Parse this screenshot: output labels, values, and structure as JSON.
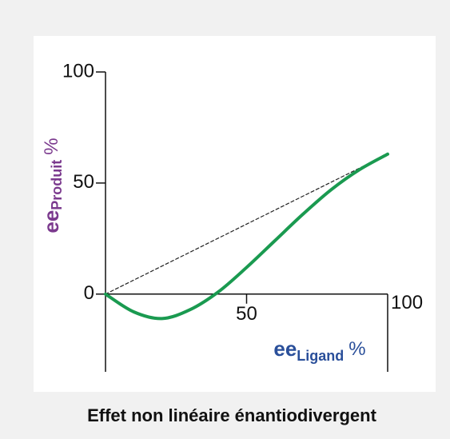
{
  "chart_data": {
    "type": "line",
    "y_label": {
      "main": "ee",
      "sub": "Produit",
      "unit": "%"
    },
    "x_label": {
      "main": "ee",
      "sub": "Ligand",
      "unit": "%"
    },
    "caption": "Effet non linéaire énantiodivergent",
    "xlim": [
      0,
      100
    ],
    "ylim": [
      -35,
      100
    ],
    "xticks": [
      50,
      100
    ],
    "yticks": [
      0,
      50,
      100
    ],
    "series": [
      {
        "color": "#1a9a50",
        "x": [
          0,
          10,
          20,
          30,
          40,
          50,
          60,
          70,
          80,
          90,
          100
        ],
        "values": [
          0,
          -8,
          -11,
          -7,
          1,
          12,
          24,
          36,
          47,
          56,
          63
        ],
        "style": "solid"
      },
      {
        "color": "#222222",
        "x": [
          0,
          100
        ],
        "values": [
          0,
          63
        ],
        "style": "dashed"
      }
    ]
  }
}
